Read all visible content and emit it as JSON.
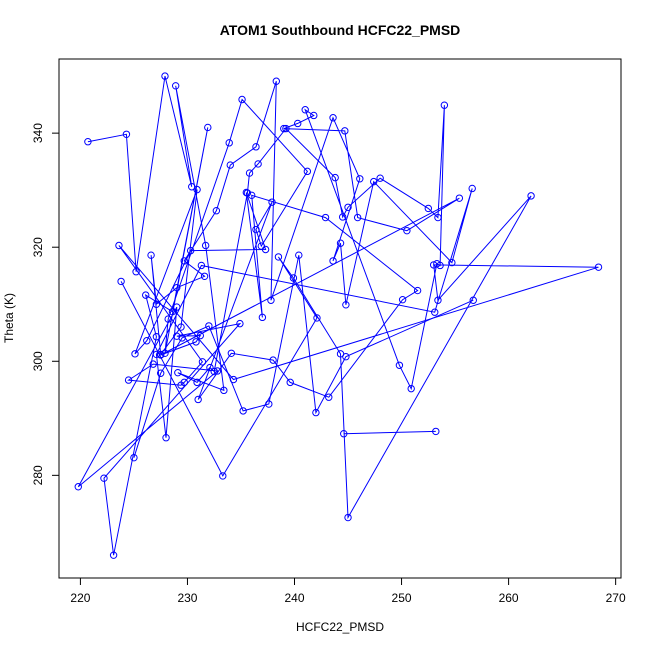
{
  "chart_data": {
    "type": "scatter",
    "mode": "lines+markers",
    "title": "ATOM1 Southbound HCFC22_PMSD",
    "xlabel": "HCFC22_PMSD",
    "ylabel": "Theta (K)",
    "xlim": [
      218.0,
      270.5
    ],
    "ylim": [
      262.0,
      353.0
    ],
    "xticks": [
      220,
      230,
      240,
      250,
      260,
      270
    ],
    "yticks": [
      280,
      300,
      320,
      340
    ],
    "grid": false,
    "legend": "none",
    "series": [
      {
        "color": "#0000ff",
        "marker": "open-circle",
        "x": [
          220.7,
          224.3,
          225.2,
          227.9,
          230.4,
          228.9,
          231.7,
          233.4,
          229.1,
          230.9,
          232.1,
          232.5,
          235.6,
          235.8,
          236.6,
          239.2,
          243.8,
          244.5,
          245.0,
          248.0,
          252.5,
          253.4,
          254.0,
          253.6,
          253.3,
          250.9,
          249.8,
          241.0,
          241.8,
          240.3,
          239.0,
          244.7,
          245.9,
          250.5,
          255.4,
          227.5,
          230.8,
          231.2,
          229.0,
          234.9,
          222.2,
          223.1,
          227.1,
          226.1,
          228.6,
          231.9,
          227.9,
          228.2,
          233.9,
          235.1,
          241.2,
          236.9,
          236.4,
          237.9,
          231.0,
          234.1,
          238.0,
          239.6,
          243.2,
          250.1,
          251.5,
          242.9,
          236.0,
          237.0,
          235.5,
          237.3,
          230.3,
          226.2,
          225.1,
          230.9,
          229.4,
          227.5,
          226.6,
          227.1,
          229.0,
          231.6,
          229.7,
          232.7,
          234.0,
          236.4,
          238.3,
          237.8,
          243.6,
          246.1,
          243.6,
          244.3,
          244.8,
          247.4,
          254.7,
          256.6,
          253.1,
          231.3,
          227.1,
          228.0,
          229.0,
          219.8,
          232.8,
          226.8,
          224.5,
          229.4,
          229.7,
          231.4,
          223.6,
          234.3,
          268.4,
          253.0,
          253.4,
          262.1,
          245.0,
          244.3,
          239.9,
          238.5,
          242.1,
          233.3,
          223.8
        ],
        "y": [
          338.5,
          339.8,
          315.7,
          350.0,
          330.6,
          348.3,
          320.3,
          294.9,
          298.0,
          296.3,
          298.9,
          298.2,
          329.5,
          333.0,
          334.6,
          340.8,
          332.2,
          325.3,
          327.0,
          332.1,
          326.8,
          325.2,
          344.9,
          316.8,
          317.1,
          295.2,
          299.3,
          344.1,
          343.1,
          341.7,
          340.8,
          340.4,
          325.2,
          322.9,
          328.6,
          301.1,
          303.4,
          304.5,
          304.4,
          306.6,
          279.5,
          266.0,
          304.3,
          311.6,
          308.7,
          341.0,
          301.4,
          307.4,
          338.3,
          345.9,
          333.3,
          320.2,
          323.1,
          327.9,
          293.3,
          301.4,
          300.2,
          296.3,
          293.7,
          310.8,
          312.4,
          325.2,
          329.1,
          307.7,
          329.6,
          319.6,
          319.4,
          303.6,
          301.3,
          330.1,
          306.0,
          301.2,
          318.6,
          310.0,
          312.9,
          314.9,
          317.6,
          326.4,
          334.4,
          337.6,
          349.1,
          310.7,
          342.7,
          332.0,
          317.6,
          320.7,
          309.9,
          331.5,
          317.3,
          330.3,
          308.6,
          316.8,
          301.2,
          286.6,
          309.5,
          278.0,
          298.3,
          299.5,
          296.7,
          295.8,
          296.3,
          299.9,
          320.3,
          296.8,
          316.5,
          316.9,
          310.7,
          329.0,
          272.6,
          301.3,
          314.6,
          318.3,
          307.6,
          279.9,
          314.0
        ]
      },
      {
        "color": "#0000ff",
        "marker": "open-circle",
        "x": [
          244.6,
          253.2
        ],
        "y": [
          287.3,
          287.7
        ]
      },
      {
        "color": "#0000ff",
        "marker": "open-circle",
        "x": [
          225.0,
          227.5,
          229.5,
          232.0,
          235.2,
          237.6,
          240.4,
          242.0,
          244.8,
          256.7
        ],
        "y": [
          283.1,
          297.9,
          304.1,
          306.2,
          291.3,
          292.5,
          318.6,
          291.0,
          300.8,
          310.7
        ]
      }
    ]
  }
}
